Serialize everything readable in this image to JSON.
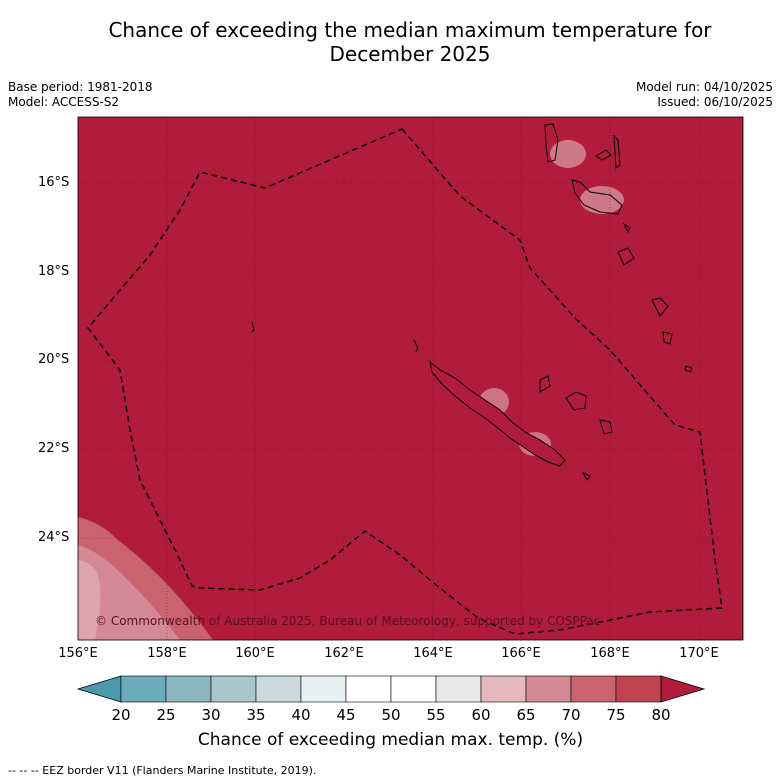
{
  "title_line1": "Chance of exceeding the median maximum temperature for",
  "title_line2": "December 2025",
  "base_period": "Base period: 1981-2018",
  "model": "Model: ACCESS-S2",
  "model_run": "Model run: 04/10/2025",
  "issued": "Issued: 06/10/2025",
  "lat_labels": [
    "16°S",
    "18°S",
    "20°S",
    "22°S",
    "24°S"
  ],
  "lon_labels": [
    "156°E",
    "158°E",
    "160°E",
    "162°E",
    "164°E",
    "166°E",
    "168°E",
    "170°E"
  ],
  "copyright": "© Commonwealth of Australia 2025, Bureau of Meteorology, supported by COSPPac",
  "colorbar": {
    "ticks": [
      "20",
      "25",
      "30",
      "35",
      "40",
      "45",
      "50",
      "55",
      "60",
      "65",
      "70",
      "75",
      "80"
    ],
    "title": "Chance of exceeding median max. temp. (%)",
    "colors": {
      "below_20": "#4a9aad",
      "20_25": "#6aacba",
      "25_30": "#8ab6c1",
      "30_35": "#a9c6cb",
      "35_40": "#c9d9dd",
      "40_45": "#e9f0f2",
      "45_50": "#ffffff",
      "50_55": "#ffffff",
      "55_60": "#e8e8e8",
      "60_65": "#e3b9be",
      "65_70": "#d48a94",
      "70_75": "#c9646f",
      "75_80": "#bf4452",
      "above_80": "#b01c3a"
    }
  },
  "map": {
    "dominant_color": "#b01c3a",
    "dominant_category": "above 80%"
  },
  "footer": "--  --  -- EEZ border V11 (Flanders Marine Institute, 2019)."
}
